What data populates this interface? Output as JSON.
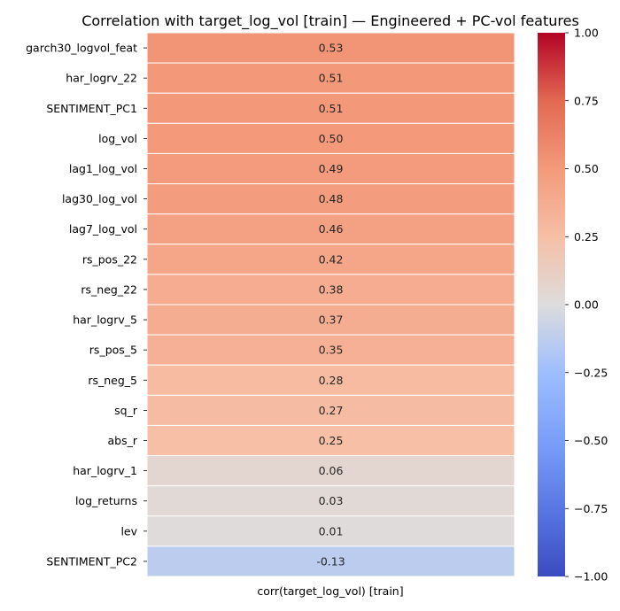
{
  "chart_data": {
    "type": "heatmap",
    "title": "Correlation with target_log_vol [train] — Engineered + PC-vol features",
    "xlabel": "corr(target_log_vol) [train]",
    "ylabel": "",
    "rows": [
      "garch30_logvol_feat",
      "har_logrv_22",
      "SENTIMENT_PC1",
      "log_vol",
      "lag1_log_vol",
      "lag30_log_vol",
      "lag7_log_vol",
      "rs_pos_22",
      "rs_neg_22",
      "har_logrv_5",
      "rs_pos_5",
      "rs_neg_5",
      "sq_r",
      "abs_r",
      "har_logrv_1",
      "log_returns",
      "lev",
      "SENTIMENT_PC2"
    ],
    "values": [
      0.53,
      0.51,
      0.51,
      0.5,
      0.49,
      0.48,
      0.46,
      0.42,
      0.38,
      0.37,
      0.35,
      0.28,
      0.27,
      0.25,
      0.06,
      0.03,
      0.01,
      -0.13
    ],
    "value_labels": [
      "0.53",
      "0.51",
      "0.51",
      "0.50",
      "0.49",
      "0.48",
      "0.46",
      "0.42",
      "0.38",
      "0.37",
      "0.35",
      "0.28",
      "0.27",
      "0.25",
      "0.06",
      "0.03",
      "0.01",
      "-0.13"
    ],
    "colorbar": {
      "colormap": "coolwarm",
      "vmin": -1.0,
      "vmax": 1.0,
      "ticks": [
        1.0,
        0.75,
        0.5,
        0.25,
        0.0,
        -0.25,
        -0.5,
        -0.75,
        -1.0
      ],
      "tick_labels": [
        "1.00",
        "0.75",
        "0.50",
        "0.25",
        "0.00",
        "−0.25",
        "−0.50",
        "−0.75",
        "−1.00"
      ]
    }
  }
}
